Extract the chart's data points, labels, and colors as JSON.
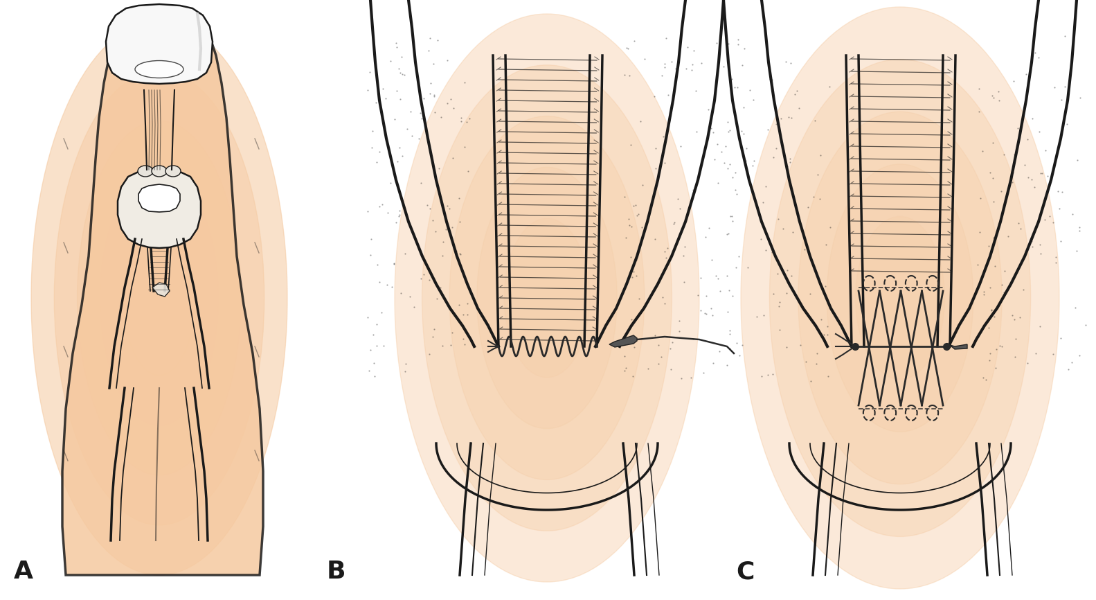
{
  "figure_width": 15.83,
  "figure_height": 8.66,
  "dpi": 100,
  "background_color": "#ffffff",
  "label_A": "A",
  "label_B": "B",
  "label_C": "C",
  "label_fontsize": 26,
  "label_color": "#000000",
  "skin_color": "#f5c9a0",
  "skin_light": "#fde8d4",
  "line_color": "#1a1a1a",
  "suture_color": "#2a2a2a",
  "dot_color": "#555555"
}
